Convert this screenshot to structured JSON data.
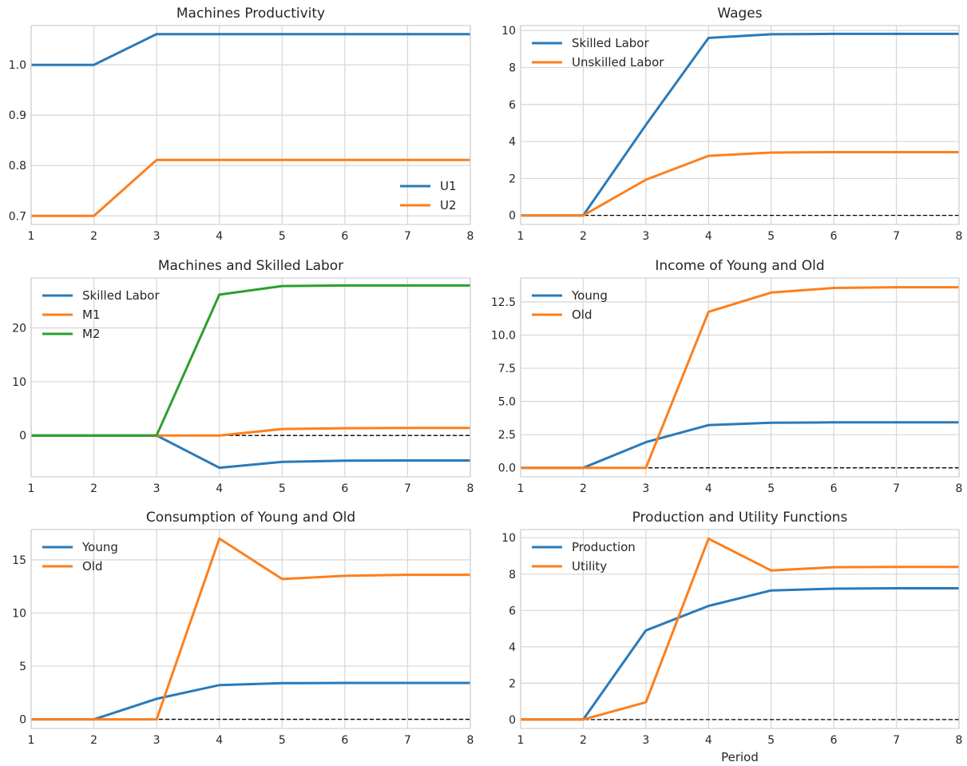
{
  "colors": {
    "blue": "#2a7ab9",
    "orange": "#fd7f1c",
    "green": "#2ca02c",
    "grid": "#d9d9d9",
    "spine": "#d0d0d0",
    "zero_line": "#000000"
  },
  "chart_data": [
    {
      "type": "line",
      "title": "Machines Productivity",
      "xlabel": "",
      "ylabel": "",
      "x": [
        1,
        2,
        3,
        4,
        5,
        6,
        7,
        8
      ],
      "xlim": [
        1,
        8
      ],
      "ylim": [
        0.683,
        1.078
      ],
      "xticks": [
        "1",
        "2",
        "3",
        "4",
        "5",
        "6",
        "7",
        "8"
      ],
      "yticks": [
        0.7,
        0.8,
        0.9,
        1.0
      ],
      "ytick_labels": [
        "0.7",
        "0.8",
        "0.9",
        "1.0"
      ],
      "zero_line": false,
      "grid": true,
      "legend": "lower-right",
      "series": [
        {
          "name": "U1",
          "color": "blue",
          "values": [
            1.0,
            1.0,
            1.061,
            1.061,
            1.061,
            1.061,
            1.061,
            1.061
          ]
        },
        {
          "name": "U2",
          "color": "orange",
          "values": [
            0.7,
            0.7,
            0.811,
            0.811,
            0.811,
            0.811,
            0.811,
            0.811
          ]
        }
      ]
    },
    {
      "type": "line",
      "title": "Wages",
      "xlabel": "",
      "ylabel": "",
      "x": [
        1,
        2,
        3,
        4,
        5,
        6,
        7,
        8
      ],
      "xlim": [
        1,
        8
      ],
      "ylim": [
        -0.49,
        10.27
      ],
      "xticks": [
        "1",
        "2",
        "3",
        "4",
        "5",
        "6",
        "7",
        "8"
      ],
      "yticks": [
        0,
        2,
        4,
        6,
        8,
        10
      ],
      "ytick_labels": [
        "0",
        "2",
        "4",
        "6",
        "8",
        "10"
      ],
      "zero_line": true,
      "grid": true,
      "legend": "top-left",
      "series": [
        {
          "name": "Skilled Labor",
          "color": "blue",
          "values": [
            0,
            0,
            4.9,
            9.6,
            9.8,
            9.82,
            9.82,
            9.82
          ]
        },
        {
          "name": "Unskilled Labor",
          "color": "orange",
          "values": [
            0,
            0,
            1.93,
            3.22,
            3.4,
            3.42,
            3.42,
            3.42
          ]
        }
      ]
    },
    {
      "type": "line",
      "title": "Machines and Skilled Labor",
      "xlabel": "",
      "ylabel": "",
      "x": [
        1,
        2,
        3,
        4,
        5,
        6,
        7,
        8
      ],
      "xlim": [
        1,
        8
      ],
      "ylim": [
        -7.7,
        29.3
      ],
      "xticks": [
        "1",
        "2",
        "3",
        "4",
        "5",
        "6",
        "7",
        "8"
      ],
      "yticks": [
        0,
        10,
        20
      ],
      "ytick_labels": [
        "0",
        "10",
        "20"
      ],
      "zero_line": true,
      "grid": true,
      "legend": "top-left",
      "series": [
        {
          "name": "Skilled Labor",
          "color": "blue",
          "values": [
            0,
            0,
            0,
            -6.0,
            -4.9,
            -4.7,
            -4.65,
            -4.65
          ]
        },
        {
          "name": "M1",
          "color": "orange",
          "values": [
            0,
            0,
            0,
            0,
            1.2,
            1.35,
            1.4,
            1.4
          ]
        },
        {
          "name": "M2",
          "color": "green",
          "values": [
            0,
            0,
            0,
            26.2,
            27.8,
            27.9,
            27.9,
            27.9
          ]
        }
      ]
    },
    {
      "type": "line",
      "title": "Income of Young and Old",
      "xlabel": "",
      "ylabel": "",
      "x": [
        1,
        2,
        3,
        4,
        5,
        6,
        7,
        8
      ],
      "xlim": [
        1,
        8
      ],
      "ylim": [
        -0.68,
        14.3
      ],
      "xticks": [
        "1",
        "2",
        "3",
        "4",
        "5",
        "6",
        "7",
        "8"
      ],
      "yticks": [
        0.0,
        2.5,
        5.0,
        7.5,
        10.0,
        12.5
      ],
      "ytick_labels": [
        "0.0",
        "2.5",
        "5.0",
        "7.5",
        "10.0",
        "12.5"
      ],
      "zero_line": true,
      "grid": true,
      "legend": "top-left",
      "series": [
        {
          "name": "Young",
          "color": "blue",
          "values": [
            0,
            0,
            1.93,
            3.22,
            3.4,
            3.42,
            3.42,
            3.42
          ]
        },
        {
          "name": "Old",
          "color": "orange",
          "values": [
            0,
            0,
            0,
            11.75,
            13.2,
            13.55,
            13.6,
            13.6
          ]
        }
      ]
    },
    {
      "type": "line",
      "title": "Consumption of Young and Old",
      "xlabel": "",
      "ylabel": "",
      "x": [
        1,
        2,
        3,
        4,
        5,
        6,
        7,
        8
      ],
      "xlim": [
        1,
        8
      ],
      "ylim": [
        -0.86,
        17.85
      ],
      "xticks": [
        "1",
        "2",
        "3",
        "4",
        "5",
        "6",
        "7",
        "8"
      ],
      "yticks": [
        0,
        5,
        10,
        15
      ],
      "ytick_labels": [
        "0",
        "5",
        "10",
        "15"
      ],
      "zero_line": true,
      "grid": true,
      "legend": "top-left",
      "series": [
        {
          "name": "Young",
          "color": "blue",
          "values": [
            0,
            0,
            1.93,
            3.22,
            3.4,
            3.42,
            3.42,
            3.42
          ]
        },
        {
          "name": "Old",
          "color": "orange",
          "values": [
            0,
            0,
            0,
            17.0,
            13.2,
            13.5,
            13.6,
            13.6
          ]
        }
      ]
    },
    {
      "type": "line",
      "title": "Production and Utility Functions",
      "xlabel": "Period",
      "ylabel": "",
      "x": [
        1,
        2,
        3,
        4,
        5,
        6,
        7,
        8
      ],
      "xlim": [
        1,
        8
      ],
      "ylim": [
        -0.49,
        10.45
      ],
      "xticks": [
        "1",
        "2",
        "3",
        "4",
        "5",
        "6",
        "7",
        "8"
      ],
      "yticks": [
        0,
        2,
        4,
        6,
        8,
        10
      ],
      "ytick_labels": [
        "0",
        "2",
        "4",
        "6",
        "8",
        "10"
      ],
      "zero_line": true,
      "grid": true,
      "legend": "top-left",
      "series": [
        {
          "name": "Production",
          "color": "blue",
          "values": [
            0,
            0,
            4.9,
            6.25,
            7.1,
            7.2,
            7.22,
            7.22
          ]
        },
        {
          "name": "Utility",
          "color": "orange",
          "values": [
            0,
            0,
            0.95,
            9.95,
            8.2,
            8.38,
            8.4,
            8.4
          ]
        }
      ]
    }
  ]
}
